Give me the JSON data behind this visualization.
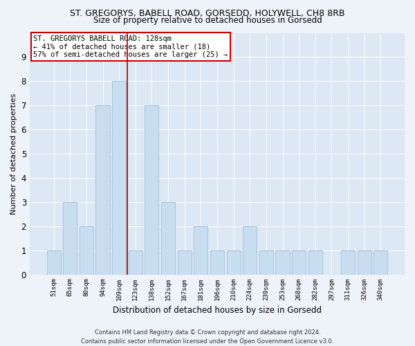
{
  "title_line1": "ST. GREGORYS, BABELL ROAD, GORSEDD, HOLYWELL, CH8 8RB",
  "title_line2": "Size of property relative to detached houses in Gorsedd",
  "xlabel": "Distribution of detached houses by size in Gorsedd",
  "ylabel": "Number of detached properties",
  "categories": [
    "51sqm",
    "65sqm",
    "80sqm",
    "94sqm",
    "109sqm",
    "123sqm",
    "138sqm",
    "152sqm",
    "167sqm",
    "181sqm",
    "196sqm",
    "210sqm",
    "224sqm",
    "239sqm",
    "253sqm",
    "268sqm",
    "282sqm",
    "297sqm",
    "311sqm",
    "326sqm",
    "340sqm"
  ],
  "bar_heights": [
    1,
    3,
    2,
    7,
    8,
    1,
    7,
    3,
    1,
    2,
    1,
    1,
    2,
    1,
    1,
    1,
    1,
    0,
    1,
    1,
    1
  ],
  "bar_color": "#c9ddf0",
  "bar_edge_color": "#a0bdd8",
  "vline_index": 4,
  "vline_color": "#cc0000",
  "annotation_title": "ST. GREGORYS BABELL ROAD: 128sqm",
  "annotation_line1": "← 41% of detached houses are smaller (18)",
  "annotation_line2": "57% of semi-detached houses are larger (25) →",
  "annotation_box_color": "#ffffff",
  "annotation_box_edge": "#cc0000",
  "ylim": [
    0,
    10
  ],
  "yticks": [
    0,
    1,
    2,
    3,
    4,
    5,
    6,
    7,
    8,
    9,
    10
  ],
  "footer_line1": "Contains HM Land Registry data © Crown copyright and database right 2024.",
  "footer_line2": "Contains public sector information licensed under the Open Government Licence v3.0.",
  "bg_color": "#eef2f9",
  "plot_bg_color": "#dce8f4",
  "grid_color": "#ffffff",
  "title1_fontsize": 9.0,
  "title2_fontsize": 8.5,
  "xlabel_fontsize": 8.5,
  "ylabel_fontsize": 8.0,
  "xtick_fontsize": 6.5,
  "ytick_fontsize": 8.5,
  "annot_fontsize": 7.5,
  "footer_fontsize": 6.0
}
